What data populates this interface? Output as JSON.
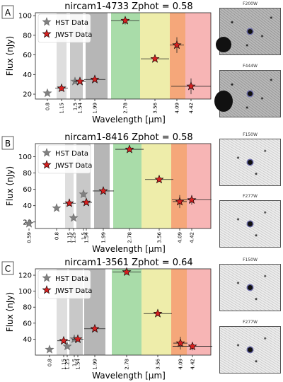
{
  "chart_data": [
    {
      "type": "scatter",
      "panel_label": "A",
      "title": "nircam1-4733 Zphot = 0.58",
      "xlabel": "Wavelength [μm]",
      "ylabel": "Flux (nJy)",
      "ylim": [
        15,
        103
      ],
      "yticks": [
        20,
        40,
        60,
        80,
        100
      ],
      "xtick_labels": [
        "0.8",
        "1.15",
        "1.5",
        "1.54",
        "1.99",
        "2.78",
        "3.56",
        "4.09",
        "4.42"
      ],
      "legend": {
        "placement": "top-left",
        "entries": [
          "HST Data",
          "JWST Data"
        ]
      },
      "series": [
        {
          "name": "HST Data",
          "color": "#808080",
          "points": [
            {
              "x": "0.8",
              "y": 21,
              "yerr": 2
            },
            {
              "x": "1.5",
              "y": 33,
              "yerr": 2
            }
          ]
        },
        {
          "name": "JWST Data",
          "color": "#d62020",
          "points": [
            {
              "x": "1.15",
              "y": 26,
              "yerr": 3
            },
            {
              "x": "1.54",
              "y": 33,
              "yerr": 2
            },
            {
              "x": "1.99",
              "y": 35,
              "yerr": 2
            },
            {
              "x": "2.78",
              "y": 95,
              "yerr": 4
            },
            {
              "x": "3.56",
              "y": 56,
              "yerr": 2
            },
            {
              "x": "4.09",
              "y": 70,
              "yerr": 8
            },
            {
              "x": "4.42",
              "y": 28,
              "yerr": 8
            }
          ]
        }
      ],
      "thumbnails": [
        "F200W",
        "F444W"
      ]
    },
    {
      "type": "scatter",
      "panel_label": "B",
      "title": "nircam1-8416 Zphot = 0.58",
      "xlabel": "Wavelength [μm]",
      "ylabel": "Flux (nJy)",
      "ylim": [
        12,
        116
      ],
      "yticks": [
        20,
        40,
        60,
        80,
        100
      ],
      "xtick_labels": [
        "0.59",
        "0.8",
        "1.15",
        "1.25",
        "1.5",
        "1.54",
        "1.99",
        "2.78",
        "3.56",
        "4.09",
        "4.42"
      ],
      "legend": {
        "placement": "top-left",
        "entries": [
          "HST Data",
          "JWST Data"
        ]
      },
      "series": [
        {
          "name": "HST Data",
          "color": "#808080",
          "points": [
            {
              "x": "0.59",
              "y": 18,
              "yerr": 2
            },
            {
              "x": "0.8",
              "y": 37,
              "yerr": 2
            },
            {
              "x": "1.25",
              "y": 25,
              "yerr": 2
            },
            {
              "x": "1.5",
              "y": 54,
              "yerr": 3
            }
          ]
        },
        {
          "name": "JWST Data",
          "color": "#d62020",
          "points": [
            {
              "x": "1.15",
              "y": 43,
              "yerr": 3
            },
            {
              "x": "1.54",
              "y": 44,
              "yerr": 3
            },
            {
              "x": "1.99",
              "y": 58,
              "yerr": 2
            },
            {
              "x": "2.78",
              "y": 109,
              "yerr": 3
            },
            {
              "x": "3.56",
              "y": 72,
              "yerr": 2
            },
            {
              "x": "4.09",
              "y": 45,
              "yerr": 8
            },
            {
              "x": "4.42",
              "y": 47,
              "yerr": 6
            }
          ]
        }
      ],
      "thumbnails": [
        "F150W",
        "F277W"
      ]
    },
    {
      "type": "scatter",
      "panel_label": "C",
      "title": "nircam1-3561 Zphot = 0.64",
      "xlabel": "Wavelength [μm]",
      "ylabel": "Flux (nJy)",
      "ylim": [
        20,
        128
      ],
      "yticks": [
        40,
        60,
        80,
        100,
        120
      ],
      "xtick_labels": [
        "0.8",
        "1.15",
        "1.25",
        "1.5",
        "1.54",
        "1.99",
        "2.78",
        "3.56",
        "4.09",
        "4.42"
      ],
      "legend": {
        "placement": "top-left",
        "entries": [
          "HST Data",
          "JWST Data"
        ]
      },
      "series": [
        {
          "name": "HST Data",
          "color": "#808080",
          "points": [
            {
              "x": "0.8",
              "y": 27,
              "yerr": 2
            },
            {
              "x": "1.25",
              "y": 31,
              "yerr": 2
            },
            {
              "x": "1.5",
              "y": 40,
              "yerr": 2
            }
          ]
        },
        {
          "name": "JWST Data",
          "color": "#d62020",
          "points": [
            {
              "x": "1.15",
              "y": 38,
              "yerr": 3
            },
            {
              "x": "1.54",
              "y": 40,
              "yerr": 3
            },
            {
              "x": "1.99",
              "y": 53,
              "yerr": 3
            },
            {
              "x": "2.78",
              "y": 124,
              "yerr": 3
            },
            {
              "x": "3.56",
              "y": 72,
              "yerr": 3
            },
            {
              "x": "4.09",
              "y": 35,
              "yerr": 8
            },
            {
              "x": "4.42",
              "y": 31,
              "yerr": 5
            }
          ]
        }
      ],
      "thumbnails": [
        "F150W",
        "F277W"
      ]
    }
  ]
}
